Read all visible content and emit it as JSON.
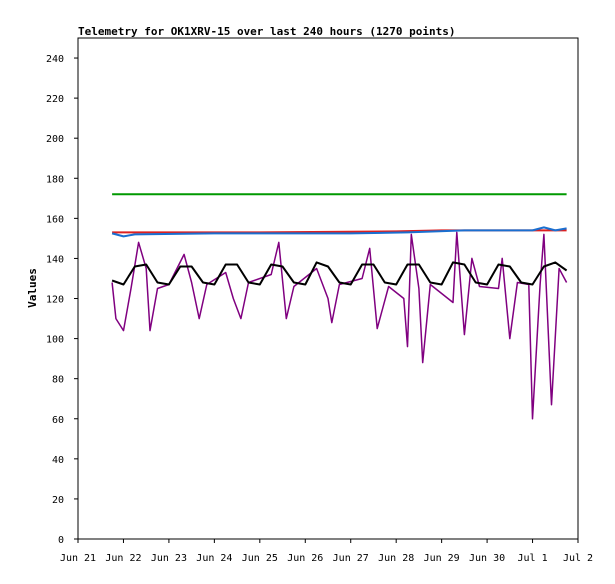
{
  "chart_data": {
    "type": "line",
    "title": "Telemetry for OK1XRV-15 over last 240 hours (1270 points)",
    "xlabel": "",
    "ylabel": "Values",
    "ylim": [
      0,
      250
    ],
    "yticks": [
      0,
      20,
      40,
      60,
      80,
      100,
      120,
      140,
      160,
      180,
      200,
      220,
      240
    ],
    "xlim": [
      "2023-06-21T00:00",
      "2023-07-02T00:00"
    ],
    "xtick_labels": [
      "Jun 21",
      "Jun 22",
      "Jun 23",
      "Jun 24",
      "Jun 25",
      "Jun 26",
      "Jun 27",
      "Jun 28",
      "Jun 29",
      "Jun 30",
      "Jul 1",
      "Jul 2"
    ],
    "grid": false,
    "legend": "none",
    "series": [
      {
        "color": "#009900",
        "points": [
          [
            "2023-06-21T18:00",
            172
          ],
          [
            "2023-07-01T18:00",
            172
          ]
        ]
      },
      {
        "color": "#dd2020",
        "points": [
          [
            "2023-06-21T18:00",
            153
          ],
          [
            "2023-06-25T00:00",
            153
          ],
          [
            "2023-06-28T00:00",
            153.5
          ],
          [
            "2023-06-29T00:00",
            154
          ],
          [
            "2023-07-01T18:00",
            154
          ]
        ]
      },
      {
        "color": "#1a6fd0",
        "points": [
          [
            "2023-06-21T18:00",
            152.5
          ],
          [
            "2023-06-22T00:00",
            151
          ],
          [
            "2023-06-22T06:00",
            152
          ],
          [
            "2023-06-24T00:00",
            152.5
          ],
          [
            "2023-06-27T00:00",
            152.5
          ],
          [
            "2023-06-28T06:00",
            153
          ],
          [
            "2023-06-29T12:00",
            154
          ],
          [
            "2023-07-01T00:00",
            154
          ],
          [
            "2023-07-01T06:00",
            155.5
          ],
          [
            "2023-07-01T12:00",
            154
          ],
          [
            "2023-07-01T18:00",
            155
          ]
        ]
      },
      {
        "color": "#800080",
        "points": [
          [
            "2023-06-21T18:00",
            128
          ],
          [
            "2023-06-21T20:00",
            110
          ],
          [
            "2023-06-22T00:00",
            104
          ],
          [
            "2023-06-22T04:00",
            125
          ],
          [
            "2023-06-22T08:00",
            148
          ],
          [
            "2023-06-22T12:00",
            135
          ],
          [
            "2023-06-22T14:00",
            104
          ],
          [
            "2023-06-22T18:00",
            125
          ],
          [
            "2023-06-23T00:00",
            127
          ],
          [
            "2023-06-23T08:00",
            142
          ],
          [
            "2023-06-23T12:00",
            128
          ],
          [
            "2023-06-23T16:00",
            110
          ],
          [
            "2023-06-23T20:00",
            127
          ],
          [
            "2023-06-24T06:00",
            133
          ],
          [
            "2023-06-24T10:00",
            120
          ],
          [
            "2023-06-24T14:00",
            110
          ],
          [
            "2023-06-24T18:00",
            128
          ],
          [
            "2023-06-25T06:00",
            132
          ],
          [
            "2023-06-25T10:00",
            148
          ],
          [
            "2023-06-25T14:00",
            110
          ],
          [
            "2023-06-25T18:00",
            126
          ],
          [
            "2023-06-26T06:00",
            135
          ],
          [
            "2023-06-26T12:00",
            120
          ],
          [
            "2023-06-26T14:00",
            108
          ],
          [
            "2023-06-26T18:00",
            127
          ],
          [
            "2023-06-27T06:00",
            130
          ],
          [
            "2023-06-27T10:00",
            145
          ],
          [
            "2023-06-27T14:00",
            105
          ],
          [
            "2023-06-27T20:00",
            126
          ],
          [
            "2023-06-28T04:00",
            120
          ],
          [
            "2023-06-28T06:00",
            96
          ],
          [
            "2023-06-28T08:00",
            152
          ],
          [
            "2023-06-28T12:00",
            125
          ],
          [
            "2023-06-28T14:00",
            88
          ],
          [
            "2023-06-28T18:00",
            127
          ],
          [
            "2023-06-29T06:00",
            118
          ],
          [
            "2023-06-29T08:00",
            153
          ],
          [
            "2023-06-29T12:00",
            102
          ],
          [
            "2023-06-29T16:00",
            140
          ],
          [
            "2023-06-29T20:00",
            126
          ],
          [
            "2023-06-30T06:00",
            125
          ],
          [
            "2023-06-30T08:00",
            140
          ],
          [
            "2023-06-30T12:00",
            100
          ],
          [
            "2023-06-30T16:00",
            128
          ],
          [
            "2023-06-30T22:00",
            127
          ],
          [
            "2023-07-01T00:00",
            60
          ],
          [
            "2023-07-01T04:00",
            127
          ],
          [
            "2023-07-01T06:00",
            152
          ],
          [
            "2023-07-01T10:00",
            67
          ],
          [
            "2023-07-01T14:00",
            135
          ],
          [
            "2023-07-01T18:00",
            128
          ]
        ]
      },
      {
        "color": "#000000",
        "points": [
          [
            "2023-06-21T18:00",
            129
          ],
          [
            "2023-06-22T00:00",
            127
          ],
          [
            "2023-06-22T06:00",
            136
          ],
          [
            "2023-06-22T12:00",
            137
          ],
          [
            "2023-06-22T18:00",
            128
          ],
          [
            "2023-06-23T00:00",
            127
          ],
          [
            "2023-06-23T06:00",
            136
          ],
          [
            "2023-06-23T12:00",
            136
          ],
          [
            "2023-06-23T18:00",
            128
          ],
          [
            "2023-06-24T00:00",
            127
          ],
          [
            "2023-06-24T06:00",
            137
          ],
          [
            "2023-06-24T12:00",
            137
          ],
          [
            "2023-06-24T18:00",
            128
          ],
          [
            "2023-06-25T00:00",
            127
          ],
          [
            "2023-06-25T06:00",
            137
          ],
          [
            "2023-06-25T12:00",
            136
          ],
          [
            "2023-06-25T18:00",
            128
          ],
          [
            "2023-06-26T00:00",
            127
          ],
          [
            "2023-06-26T06:00",
            138
          ],
          [
            "2023-06-26T12:00",
            136
          ],
          [
            "2023-06-26T18:00",
            128
          ],
          [
            "2023-06-27T00:00",
            127
          ],
          [
            "2023-06-27T06:00",
            137
          ],
          [
            "2023-06-27T12:00",
            137
          ],
          [
            "2023-06-27T18:00",
            128
          ],
          [
            "2023-06-28T00:00",
            127
          ],
          [
            "2023-06-28T06:00",
            137
          ],
          [
            "2023-06-28T12:00",
            137
          ],
          [
            "2023-06-28T18:00",
            128
          ],
          [
            "2023-06-29T00:00",
            127
          ],
          [
            "2023-06-29T06:00",
            138
          ],
          [
            "2023-06-29T12:00",
            137
          ],
          [
            "2023-06-29T18:00",
            128
          ],
          [
            "2023-06-30T00:00",
            127
          ],
          [
            "2023-06-30T06:00",
            137
          ],
          [
            "2023-06-30T12:00",
            136
          ],
          [
            "2023-06-30T18:00",
            128
          ],
          [
            "2023-07-01T00:00",
            127
          ],
          [
            "2023-07-01T06:00",
            136
          ],
          [
            "2023-07-01T12:00",
            138
          ],
          [
            "2023-07-01T18:00",
            134
          ]
        ]
      }
    ]
  }
}
